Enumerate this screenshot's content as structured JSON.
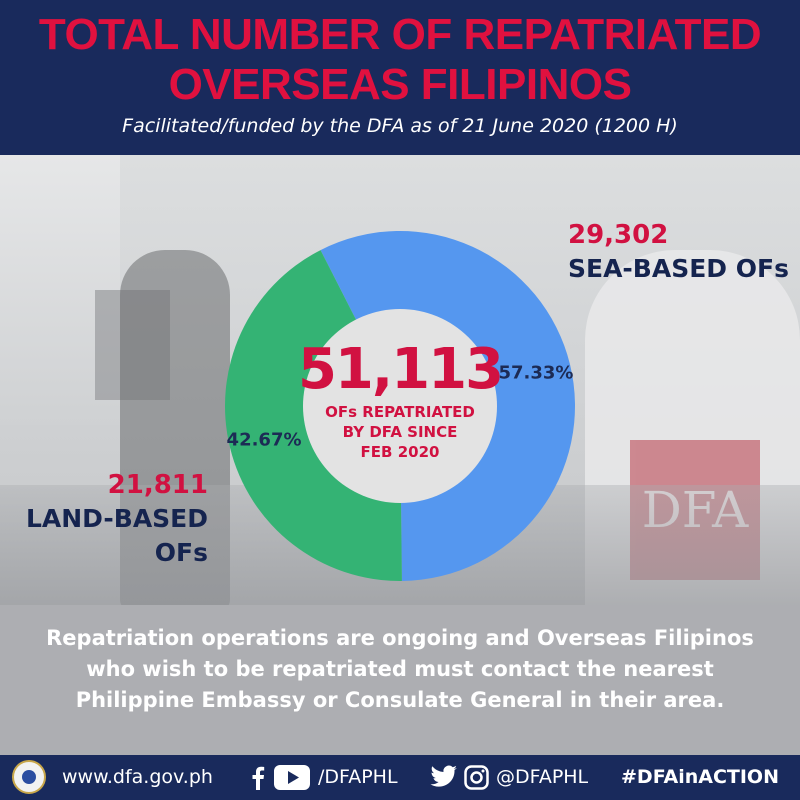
{
  "header": {
    "title_line1": "TOTAL NUMBER OF REPATRIATED",
    "title_line2": "OVERSEAS FILIPINOS",
    "subtitle": "Facilitated/funded by the DFA as of  21 June 2020 (1200 H)"
  },
  "chart_data": {
    "type": "pie",
    "variant": "donut",
    "categories": [
      "SEA-BASED OFs",
      "LAND-BASED OFs"
    ],
    "values": [
      29302,
      21811
    ],
    "percent_labels": [
      "57.33%",
      "42.67%"
    ],
    "value_labels": [
      "29,302",
      "21,811"
    ],
    "colors": [
      "#5597ef",
      "#34b374"
    ],
    "center_total": "51,113",
    "center_caption": [
      "OFs REPATRIATED",
      "BY DFA SINCE",
      "FEB 2020"
    ]
  },
  "labels": {
    "sea_count": "29,302",
    "sea_category": "SEA-BASED OFs",
    "land_count": "21,811",
    "land_category_line1": "LAND-BASED",
    "land_category_line2": "OFs"
  },
  "photo": {
    "dfa_suit_text": "DFA"
  },
  "note": {
    "text": "Repatriation operations are ongoing and Overseas Filipinos who wish to be repatriated must contact the nearest Philippine Embassy or Consulate General in their area."
  },
  "footer": {
    "website": "www.dfa.gov.ph",
    "facebook_youtube_handle": "/DFAPHL",
    "twitter_instagram_handle": "@DFAPHL",
    "hashtag": "#DFAinACTION"
  },
  "colors": {
    "navy": "#192a5c",
    "red": "#d11141",
    "sea_blue": "#5597ef",
    "land_green": "#34b374"
  },
  "icons": [
    "seal-icon",
    "facebook-icon",
    "youtube-icon",
    "twitter-icon",
    "instagram-icon"
  ]
}
